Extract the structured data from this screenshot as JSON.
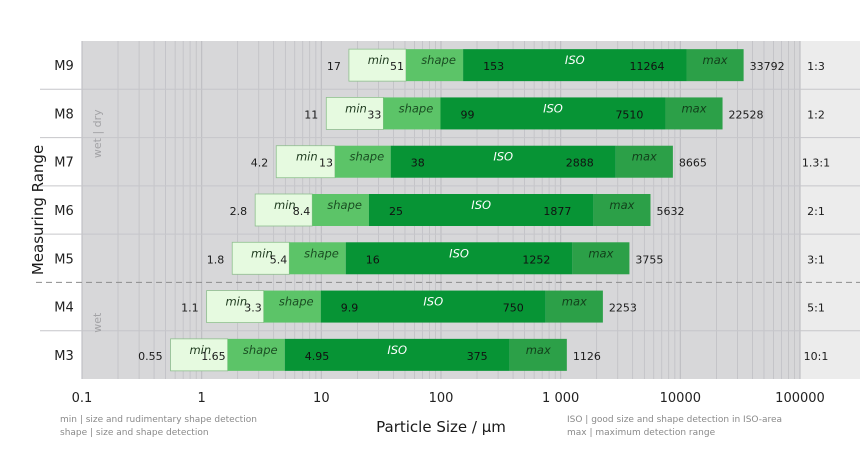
{
  "chart_data": {
    "type": "bar",
    "title": "",
    "xlabel": "Particle Size / µm",
    "ylabel": "Measuring Range",
    "x_scale": "log",
    "xlim": [
      0.1,
      100000
    ],
    "x_ticks": [
      {
        "value": 0.1,
        "label": "0.1"
      },
      {
        "value": 1,
        "label": "1"
      },
      {
        "value": 10,
        "label": "10"
      },
      {
        "value": 100,
        "label": "100"
      },
      {
        "value": 1000,
        "label": "1 000"
      },
      {
        "value": 10000,
        "label": "10000"
      },
      {
        "value": 100000,
        "label": "100000"
      }
    ],
    "grid": true,
    "segment_labels": {
      "min": "min",
      "shape": "shape",
      "iso": "ISO",
      "max": "max"
    },
    "group_labels": {
      "dry": "wet | dry",
      "wet": "wet"
    },
    "colors": {
      "min": "#e6fae0",
      "shape": "#5cc468",
      "iso": "#079435",
      "max": "#2ca048",
      "background": "#d7d7d9",
      "grid": "#bdbdc2"
    },
    "rows": [
      {
        "name": "M9",
        "min": "17",
        "shape": "51",
        "iso_start": "153",
        "iso_end": "11264",
        "max": "33792",
        "ratio": "1:3"
      },
      {
        "name": "M8",
        "min": "11",
        "shape": "33",
        "iso_start": "99",
        "iso_end": "7510",
        "max": "22528",
        "ratio": "1:2"
      },
      {
        "name": "M7",
        "min": "4.2",
        "shape": "13",
        "iso_start": "38",
        "iso_end": "2888",
        "max": "8665",
        "ratio": "1.3:1"
      },
      {
        "name": "M6",
        "min": "2.8",
        "shape": "8.4",
        "iso_start": "25",
        "iso_end": "1877",
        "max": "5632",
        "ratio": "2:1"
      },
      {
        "name": "M5",
        "min": "1.8",
        "shape": "5.4",
        "iso_start": "16",
        "iso_end": "1252",
        "max": "3755",
        "ratio": "3:1"
      },
      {
        "name": "M4",
        "min": "1.1",
        "shape": "3.3",
        "iso_start": "9.9",
        "iso_end": "750",
        "max": "2253",
        "ratio": "5:1"
      },
      {
        "name": "M3",
        "min": "0.55",
        "shape": "1.65",
        "iso_start": "4.95",
        "iso_end": "375",
        "max": "1126",
        "ratio": "10:1"
      }
    ]
  },
  "footnotes": {
    "left_1": "min | size and rudimentary shape detection",
    "left_2": "shape | size and shape detection",
    "right_1": "ISO | good size and shape detection in ISO-area",
    "right_2": "max | maximum detection range"
  }
}
